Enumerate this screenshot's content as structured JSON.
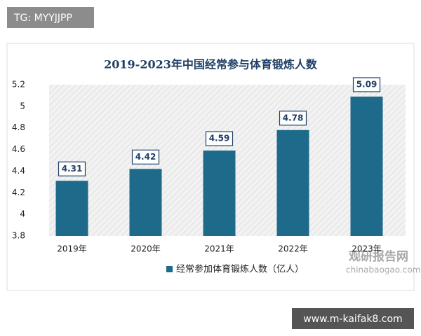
{
  "chart_data": {
    "type": "bar",
    "title": "2019-2023年中国经常参与体育锻炼人数",
    "categories": [
      "2019年",
      "2020年",
      "2021年",
      "2022年",
      "2023年"
    ],
    "series": [
      {
        "name": "经常参加体育锻炼人数（亿人）",
        "color": "#1d6a8b",
        "values": [
          4.31,
          4.42,
          4.59,
          4.78,
          5.09
        ]
      }
    ],
    "ylim": [
      3.8,
      5.2
    ],
    "yticks": [
      3.8,
      4,
      4.2,
      4.4,
      4.6,
      4.8,
      5,
      5.2
    ],
    "grid": false,
    "legend": "bottom"
  },
  "overlay": {
    "top_label": "TG: MYYJJPP",
    "bottom_label": "www.m-kaifak8.com",
    "watermark": "观研报告网",
    "watermark_url": "chinabaogao.com"
  }
}
